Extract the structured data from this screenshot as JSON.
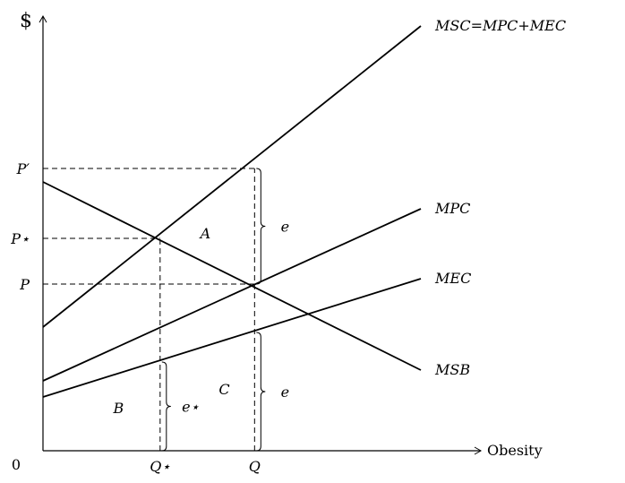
{
  "chart_data": {
    "type": "line",
    "title": "",
    "xlabel": "Obesity",
    "ylabel": "$",
    "origin_label": "0",
    "xlim": [
      0,
      1
    ],
    "ylim": [
      0,
      1
    ],
    "grid": false,
    "legend": "none",
    "series": [
      {
        "name": "MSC=MPC+MEC",
        "x": [
          0,
          1
        ],
        "y": [
          0.46,
          1.58
        ],
        "color": "#000000"
      },
      {
        "name": "MPC",
        "x": [
          0,
          1
        ],
        "y": [
          0.26,
          0.9
        ],
        "color": "#000000"
      },
      {
        "name": "MEC",
        "x": [
          0,
          1
        ],
        "y": [
          0.2,
          0.64
        ],
        "color": "#000000"
      },
      {
        "name": "MSB",
        "x": [
          0,
          1
        ],
        "y": [
          1.0,
          0.3
        ],
        "color": "#000000"
      }
    ],
    "x_ticks": [
      {
        "label": "Q⋆",
        "value": 0.31
      },
      {
        "label": "Q",
        "value": 0.56
      }
    ],
    "y_ticks": [
      {
        "label": "P′",
        "value": 1.05
      },
      {
        "label": "P⋆",
        "value": 0.79
      },
      {
        "label": "P",
        "value": 0.62
      }
    ],
    "reference_lines": [
      {
        "kind": "horizontal",
        "y": 1.05,
        "x_to": 0.56
      },
      {
        "kind": "horizontal",
        "y": 0.79,
        "x_to": 0.31
      },
      {
        "kind": "horizontal",
        "y": 0.62,
        "x_to": 0.56
      },
      {
        "kind": "vertical",
        "x": 0.31,
        "y_to": 0.79
      },
      {
        "kind": "vertical",
        "x": 0.56,
        "y_to": 1.05
      }
    ],
    "braces": [
      {
        "x": 0.56,
        "y_from": 0.62,
        "y_to": 1.05,
        "label": "e"
      },
      {
        "x": 0.56,
        "y_from": 0.0,
        "y_to": 0.44,
        "label": "e"
      },
      {
        "x": 0.31,
        "y_from": 0.0,
        "y_to": 0.33,
        "label": "e⋆"
      }
    ],
    "region_labels": [
      {
        "label": "A",
        "x": 0.43,
        "y": 0.81
      },
      {
        "label": "B",
        "x": 0.2,
        "y": 0.16
      },
      {
        "label": "C",
        "x": 0.48,
        "y": 0.23
      }
    ]
  }
}
